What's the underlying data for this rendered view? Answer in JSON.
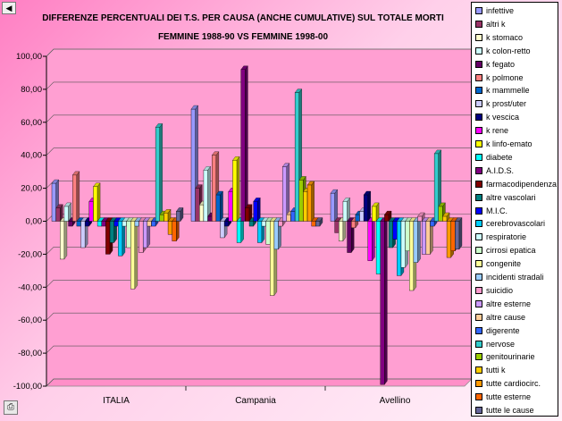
{
  "chart_data": {
    "type": "bar",
    "title_lines": [
      "DIFFERENZE PERCENTUALI DEI T.S. PER CAUSA (ANCHE CUMULATIVE) SUL TOTALE MORTI",
      "FEMMINE 1988-90 VS FEMMINE 1998-00"
    ],
    "categories": [
      "ITALIA",
      "Campania",
      "Avellino"
    ],
    "ylim": [
      -100,
      100
    ],
    "yticks": [
      "100,00",
      "80,00",
      "60,00",
      "40,00",
      "20,00",
      "0,00",
      "-20,00",
      "-40,00",
      "-60,00",
      "-80,00",
      "-100,00"
    ],
    "grid": true,
    "legend_position": "right",
    "series": [
      {
        "name": "infettive",
        "color": "#9999ff",
        "values": [
          23,
          68,
          17
        ]
      },
      {
        "name": "altri k",
        "color": "#993366",
        "values": [
          8,
          20,
          -7
        ]
      },
      {
        "name": "k stomaco",
        "color": "#ffffcc",
        "values": [
          -23,
          10,
          -12
        ]
      },
      {
        "name": "k colon-retto",
        "color": "#ccffff",
        "values": [
          9,
          31,
          12
        ]
      },
      {
        "name": "k fegato",
        "color": "#660066",
        "values": [
          -3,
          3,
          -19
        ]
      },
      {
        "name": "k polmone",
        "color": "#ff8080",
        "values": [
          28,
          40,
          -4
        ]
      },
      {
        "name": "k mammelle",
        "color": "#0066cc",
        "values": [
          -3,
          16,
          4
        ]
      },
      {
        "name": "k prost/uter",
        "color": "#ccccff",
        "values": [
          -16,
          -10,
          6
        ]
      },
      {
        "name": "k vescica",
        "color": "#000080",
        "values": [
          -3,
          -3,
          16
        ]
      },
      {
        "name": "k rene",
        "color": "#ff00ff",
        "values": [
          12,
          18,
          -24
        ]
      },
      {
        "name": "k linfo-emato",
        "color": "#ffff00",
        "values": [
          21,
          37,
          9
        ]
      },
      {
        "name": "diabete",
        "color": "#00ffff",
        "values": [
          -3,
          -13,
          -32
        ]
      },
      {
        "name": "A.I.D.S.",
        "color": "#800080",
        "values": [
          -3,
          92,
          -99
        ]
      },
      {
        "name": "farmacodipendenza",
        "color": "#800000",
        "values": [
          -20,
          8,
          4
        ]
      },
      {
        "name": "altre vascolari",
        "color": "#008080",
        "values": [
          -13,
          -3,
          -16
        ]
      },
      {
        "name": "M.I.C.",
        "color": "#0000ff",
        "values": [
          -3,
          12,
          -11
        ]
      },
      {
        "name": "cerebrovascolari",
        "color": "#00ccff",
        "values": [
          -21,
          -13,
          -33
        ]
      },
      {
        "name": "respiratorie",
        "color": "#ccffff",
        "values": [
          -3,
          -3,
          -28
        ]
      },
      {
        "name": "cirrosi epatica",
        "color": "#ccffcc",
        "values": [
          -16,
          -14,
          -18
        ]
      },
      {
        "name": "congenite",
        "color": "#ffff99",
        "values": [
          -41,
          -45,
          -42
        ]
      },
      {
        "name": "incidenti stradali",
        "color": "#99ccff",
        "values": [
          -3,
          -17,
          -25
        ]
      },
      {
        "name": "suicidio",
        "color": "#ff99cc",
        "values": [
          -19,
          -3,
          3
        ]
      },
      {
        "name": "altre esterne",
        "color": "#cc99ff",
        "values": [
          -16,
          33,
          -20
        ]
      },
      {
        "name": "altre cause",
        "color": "#ffcc99",
        "values": [
          -3,
          4,
          -20
        ]
      },
      {
        "name": "digerente",
        "color": "#3366ff",
        "values": [
          -3,
          6,
          -3
        ]
      },
      {
        "name": "nervose",
        "color": "#33cccc",
        "values": [
          57,
          78,
          41
        ]
      },
      {
        "name": "genitourinarie",
        "color": "#99cc00",
        "values": [
          4,
          25,
          9
        ]
      },
      {
        "name": "tutti k",
        "color": "#ffcc00",
        "values": [
          5,
          18,
          3
        ]
      },
      {
        "name": "tutte cardiocirc.",
        "color": "#ff9900",
        "values": [
          -8,
          22,
          -22
        ]
      },
      {
        "name": "tutte esterne",
        "color": "#ff6600",
        "values": [
          -12,
          -3,
          -18
        ]
      },
      {
        "name": "tutte le cause",
        "color": "#666699",
        "values": [
          6,
          -3,
          -17
        ]
      }
    ]
  }
}
